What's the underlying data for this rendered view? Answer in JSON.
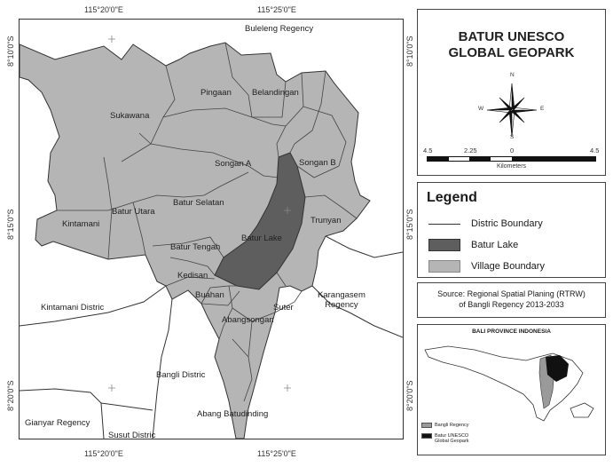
{
  "graticule": {
    "top_left": "115°20'0\"E",
    "top_right": "115°25'0\"E",
    "bottom_left": "115°20'0\"E",
    "bottom_right": "115°25'0\"E",
    "left_top": "8°10'0\"S",
    "left_mid": "8°15'0\"S",
    "left_bottom": "8°20'0\"S",
    "right_top": "8°10'0\"S",
    "right_mid": "8°15'0\"S",
    "right_bottom": "8°20'0\"S"
  },
  "map_labels": {
    "buleleng": "Buleleng Regency",
    "pingaan": "Pingaan",
    "belandingan": "Belandingan",
    "sukawana": "Sukawana",
    "songan_a": "Songan A",
    "songan_b": "Songan B",
    "batur_selatan": "Batur Selatan",
    "batur_utara": "Batur Utara",
    "kintamani": "Kintamani",
    "batur_tengah": "Batur Tengah",
    "batur_lake": "Batur Lake",
    "trunyan": "Trunyan",
    "kedisan": "Kedisan",
    "buahan": "Buahan",
    "suter": "Suter",
    "abangsongan": "Abangsongan",
    "kintamani_distric": "Kintamani Distric",
    "karangasem": "Karangasem\nRegency",
    "bangli_distric": "Bangli Distric",
    "abang_batudinding": "Abang Batudinding",
    "gianyar": "Gianyar Regency",
    "susut": "Susut Distric"
  },
  "title": "BATUR UNESCO\nGLOBAL GEOPARK",
  "compass": {
    "n": "N",
    "s": "S",
    "e": "E",
    "w": "W"
  },
  "scale": {
    "labels": [
      "4.5",
      "2.25",
      "0",
      "4.5"
    ],
    "unit": "Kilometers"
  },
  "legend": {
    "title": "Legend",
    "items": [
      {
        "label": "Distric Boundary"
      },
      {
        "label": "Batur Lake"
      },
      {
        "label": "Village Boundary"
      }
    ]
  },
  "source": "Source: Regional Spatial Planing (RTRW)\nof Bangli Regency 2013-2033",
  "inset": {
    "title": "BALI PROVINCE INDONESIA",
    "legend": [
      {
        "label": "Bangli Regency"
      },
      {
        "label": "Batur UNESCO\nGlobal Geopark"
      }
    ]
  },
  "colors": {
    "village": "#b5b5b5",
    "lake": "#5e5e5e",
    "boundary": "#333333",
    "geopark": "#111111"
  }
}
